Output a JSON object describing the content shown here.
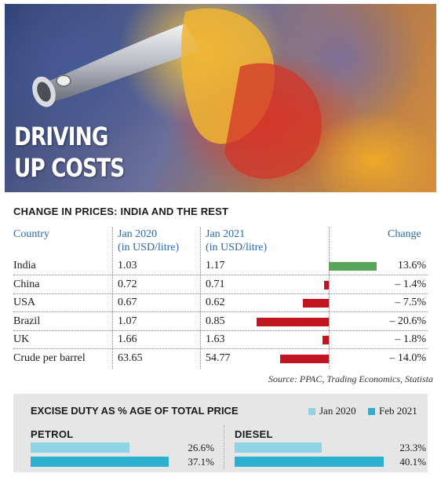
{
  "hero": {
    "line1": "DRIVING",
    "line2": "UP COSTS"
  },
  "table": {
    "title": "CHANGE IN PRICES: INDIA AND THE REST",
    "headers": {
      "country": "Country",
      "jan2020_l1": "Jan 2020",
      "jan2020_l2": "(in USD/litre)",
      "jan2021_l1": "Jan 2021",
      "jan2021_l2": "(in USD/litre)",
      "change": "Change"
    },
    "rows": [
      {
        "country": "India",
        "jan2020": "1.03",
        "jan2021": "1.17",
        "change_label": "13.6%",
        "change": 13.6
      },
      {
        "country": "China",
        "jan2020": "0.72",
        "jan2021": "0.71",
        "change_label": "– 1.4%",
        "change": -1.4
      },
      {
        "country": "USA",
        "jan2020": "0.67",
        "jan2021": "0.62",
        "change_label": "– 7.5%",
        "change": -7.5
      },
      {
        "country": "Brazil",
        "jan2020": "1.07",
        "jan2021": "0.85",
        "change_label": "– 20.6%",
        "change": -20.6
      },
      {
        "country": "UK",
        "jan2020": "1.66",
        "jan2021": "1.63",
        "change_label": "– 1.8%",
        "change": -1.8
      },
      {
        "country": "Crude per barrel",
        "jan2020": "63.65",
        "jan2021": "54.77",
        "change_label": "– 14.0%",
        "change": -14.0
      }
    ],
    "source": "Source: PPAC, Trading Economics, Statista",
    "colors": {
      "positive": "#5aa55a",
      "negative": "#c0141e"
    }
  },
  "excise": {
    "title": "EXCISE DUTY AS % AGE OF TOTAL PRICE",
    "legend": {
      "jan2020": "Jan 2020",
      "feb2021": "Feb 2021"
    },
    "colors": {
      "jan2020": "#8fd3e6",
      "feb2021": "#2bb0cf"
    },
    "petrol": {
      "label": "PETROL",
      "jan2020_label": "26.6%",
      "feb2021_label": "37.1%"
    },
    "diesel": {
      "label": "DIESEL",
      "jan2020_label": "23.3%",
      "feb2021_label": "40.1%"
    }
  },
  "chart_data": [
    {
      "type": "bar",
      "title": "CHANGE IN PRICES: INDIA AND THE REST",
      "categories": [
        "India",
        "China",
        "USA",
        "Brazil",
        "UK",
        "Crude per barrel"
      ],
      "series": [
        {
          "name": "Jan 2020",
          "values": [
            1.03,
            0.72,
            0.67,
            1.07,
            1.66,
            63.65
          ]
        },
        {
          "name": "Jan 2021",
          "values": [
            1.17,
            0.71,
            0.62,
            0.85,
            1.63,
            54.77
          ]
        },
        {
          "name": "Change",
          "values": [
            13.6,
            -1.4,
            -7.5,
            -20.6,
            -1.8,
            -14.0
          ]
        }
      ]
    },
    {
      "type": "bar",
      "title": "EXCISE DUTY AS % AGE OF TOTAL PRICE",
      "categories": [
        "PETROL",
        "DIESEL"
      ],
      "series": [
        {
          "name": "Jan 2020",
          "values": [
            26.6,
            23.3
          ]
        },
        {
          "name": "Feb 2021",
          "values": [
            37.1,
            40.1
          ]
        }
      ]
    }
  ]
}
